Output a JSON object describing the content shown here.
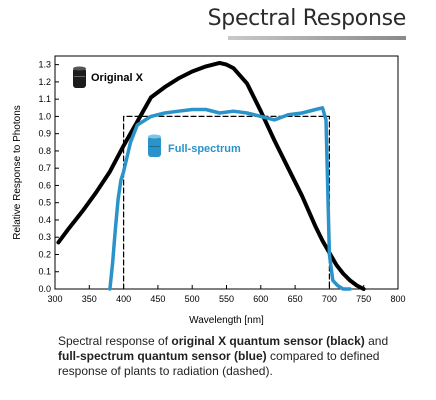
{
  "header": {
    "title": "Spectral Response"
  },
  "chart_data": {
    "type": "line",
    "title": "",
    "xlabel": "Wavelength [nm]",
    "ylabel": "Relative Response to Photons",
    "xlim": [
      300,
      800
    ],
    "ylim": [
      0,
      1.35
    ],
    "xticks": [
      300,
      350,
      400,
      450,
      500,
      550,
      600,
      650,
      700,
      750,
      800
    ],
    "yticks": [
      0.0,
      0.1,
      0.2,
      0.3,
      0.4,
      0.5,
      0.6,
      0.7,
      0.8,
      0.9,
      1.0,
      1.1,
      1.2,
      1.3
    ],
    "grid": false,
    "series": [
      {
        "name": "Original X",
        "color": "#000000",
        "style": "solid",
        "x": [
          305,
          320,
          340,
          360,
          380,
          400,
          420,
          440,
          460,
          480,
          500,
          520,
          540,
          550,
          560,
          580,
          600,
          620,
          640,
          660,
          680,
          690,
          700,
          710,
          720,
          730,
          740,
          750
        ],
        "y": [
          0.27,
          0.35,
          0.45,
          0.56,
          0.68,
          0.83,
          0.97,
          1.11,
          1.17,
          1.22,
          1.26,
          1.29,
          1.31,
          1.3,
          1.28,
          1.19,
          1.03,
          0.86,
          0.7,
          0.54,
          0.36,
          0.28,
          0.21,
          0.14,
          0.09,
          0.05,
          0.02,
          0.0
        ]
      },
      {
        "name": "Full-spectrum",
        "color": "#2a93c9",
        "style": "solid",
        "x": [
          380,
          384,
          388,
          392,
          396,
          400,
          410,
          420,
          440,
          460,
          480,
          500,
          520,
          540,
          560,
          580,
          600,
          620,
          640,
          660,
          680,
          690,
          695,
          700,
          705,
          712,
          720,
          730
        ],
        "y": [
          0.0,
          0.15,
          0.35,
          0.52,
          0.63,
          0.68,
          0.85,
          0.95,
          1.0,
          1.02,
          1.03,
          1.04,
          1.04,
          1.02,
          1.03,
          1.02,
          1.0,
          0.98,
          1.01,
          1.02,
          1.04,
          1.05,
          0.98,
          0.2,
          0.05,
          0.02,
          0.0,
          0.0
        ]
      },
      {
        "name": "Defined response of plants to radiation",
        "color": "#000000",
        "style": "dashed",
        "x": [
          400,
          400,
          700,
          700
        ],
        "y": [
          0.0,
          1.0,
          1.0,
          0.0
        ]
      }
    ],
    "legend": [
      {
        "label": "Original X",
        "color": "#000000",
        "icon": "black-sensor-icon"
      },
      {
        "label": "Full-spectrum",
        "color": "#2a93c9",
        "icon": "blue-sensor-icon"
      }
    ]
  },
  "caption": {
    "part1": "Spectral response of ",
    "bold1": "original X quantum sensor (black)",
    "part2": " and ",
    "bold2": "full-spectrum quantum sensor (blue)",
    "part3": " compared to defined response of plants to radiation (dashed)."
  }
}
